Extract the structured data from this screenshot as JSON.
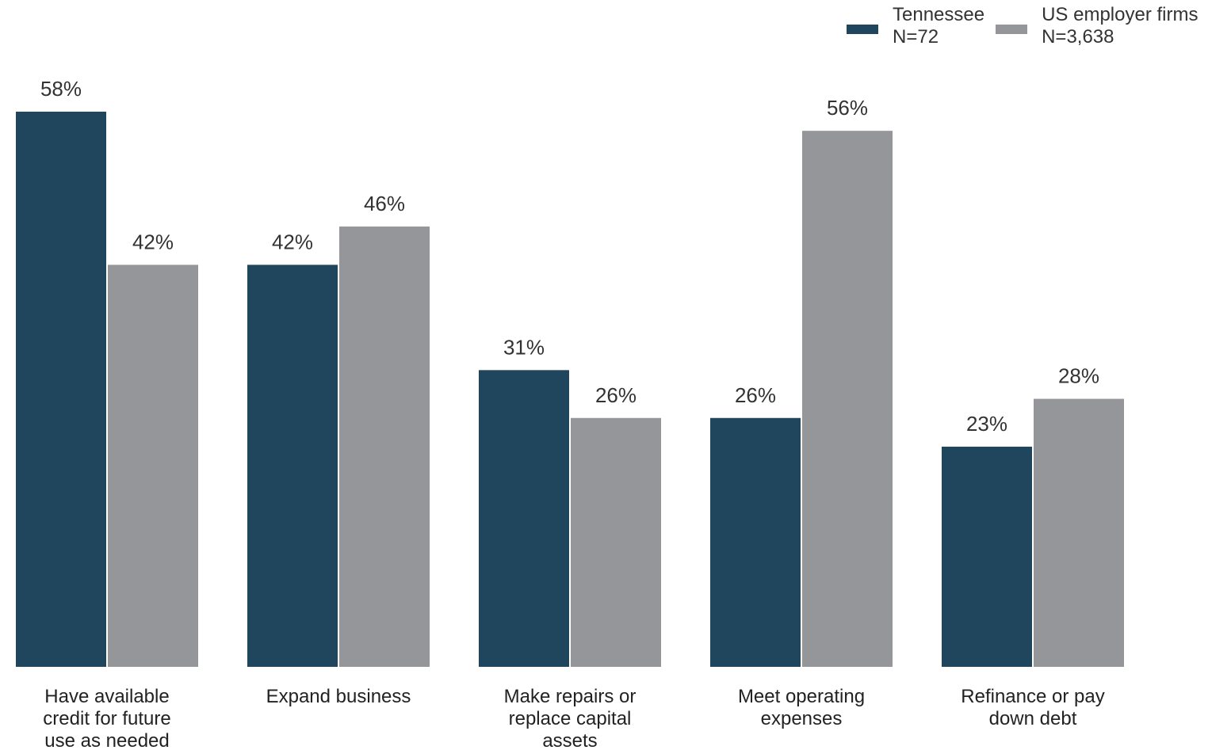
{
  "chart_data": {
    "type": "bar",
    "categories": [
      [
        "Have available",
        "credit for future",
        "use as needed"
      ],
      [
        "Expand business"
      ],
      [
        "Make repairs or",
        "replace capital",
        "assets"
      ],
      [
        "Meet operating",
        "expenses"
      ],
      [
        "Refinance or pay",
        "down debt"
      ]
    ],
    "series": [
      {
        "name": "Tennessee",
        "sub": "N=72",
        "color": "#1f465c",
        "values": [
          58,
          42,
          31,
          26,
          23
        ],
        "labels": [
          "58%",
          "42%",
          "31%",
          "26%",
          "23%"
        ]
      },
      {
        "name": "US employer firms",
        "sub": "N=3,638",
        "color": "#959699",
        "values": [
          42,
          46,
          26,
          56,
          28
        ],
        "labels": [
          "42%",
          "46%",
          "26%",
          "56%",
          "28%"
        ]
      }
    ],
    "ylim": [
      0,
      58
    ],
    "grid": false,
    "legend_position": "top-right"
  }
}
